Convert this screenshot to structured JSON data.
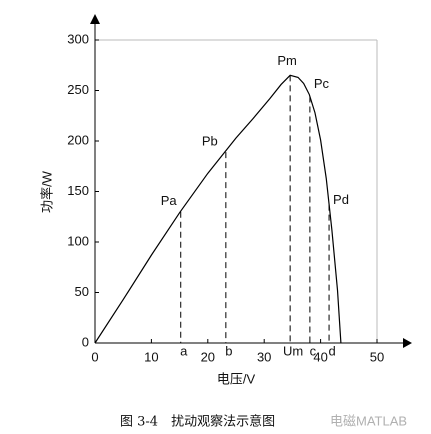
{
  "chart_data": {
    "type": "line",
    "x_label": "电压/V",
    "y_label": "功率/W",
    "caption": "图 3-4　扰动观察法示意图",
    "watermark": "电磁MATLAB",
    "x": [
      0,
      5,
      10,
      15,
      20,
      25,
      28,
      31,
      33,
      34.6,
      36,
      37,
      38,
      39,
      40,
      41,
      42,
      43,
      43.6
    ],
    "values": [
      0,
      43,
      87,
      129,
      168,
      203,
      222,
      242,
      256,
      265,
      263,
      257,
      246,
      228,
      201,
      163,
      112,
      52,
      0
    ],
    "color": "#000000",
    "points": [
      {
        "label": "Pa",
        "axis_label": "a",
        "x": 15.2,
        "y": 130
      },
      {
        "label": "Pb",
        "axis_label": "b",
        "x": 23.2,
        "y": 189
      },
      {
        "label": "Pm",
        "axis_label": "Um",
        "x": 34.6,
        "y": 265
      },
      {
        "label": "Pc",
        "axis_label": "c",
        "x": 38.1,
        "y": 244
      },
      {
        "label": "Pd",
        "axis_label": "d",
        "x": 41.5,
        "y": 137
      }
    ],
    "xlim": [
      0,
      50
    ],
    "xticks": [
      0,
      10,
      20,
      30,
      40,
      50
    ],
    "ylim": [
      0,
      300
    ],
    "yticks": [
      0,
      50,
      100,
      150,
      200,
      250,
      300
    ]
  }
}
